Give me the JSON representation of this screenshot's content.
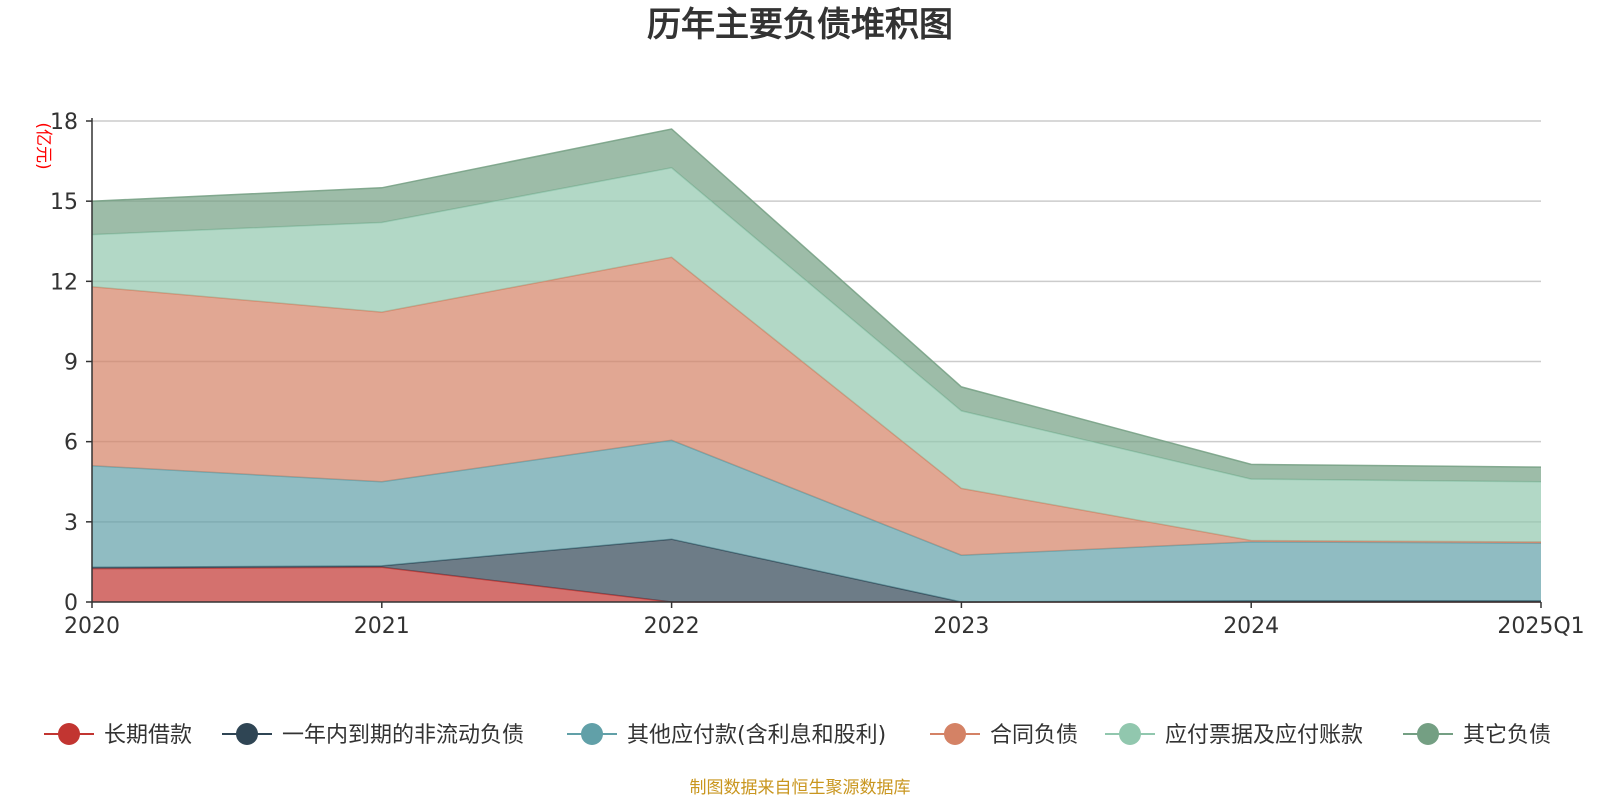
{
  "chart_data": {
    "type": "area",
    "title": "历年主要负债堆积图",
    "y_unit_label": "(亿元)",
    "categories": [
      "2020",
      "2021",
      "2022",
      "2023",
      "2024",
      "2025Q1"
    ],
    "ylim": [
      0,
      18
    ],
    "yticks": [
      "0",
      "3",
      "6",
      "9",
      "12",
      "15",
      "18"
    ],
    "grid": true,
    "stacked": true,
    "series": [
      {
        "name": "长期借款",
        "color": "#c23531",
        "values": [
          1.25,
          1.3,
          0.0,
          0.0,
          0.0,
          0.0
        ]
      },
      {
        "name": "一年内到期的非流动负债",
        "color": "#2f4554",
        "values": [
          0.05,
          0.05,
          2.35,
          0.0,
          0.05,
          0.05
        ]
      },
      {
        "name": "其他应付款(含利息和股利)",
        "color": "#61a0a8",
        "values": [
          3.8,
          3.15,
          3.7,
          1.75,
          2.2,
          2.15
        ]
      },
      {
        "name": "合同负债",
        "color": "#d48265",
        "values": [
          6.7,
          6.35,
          6.85,
          2.5,
          0.05,
          0.05
        ]
      },
      {
        "name": "应付票据及应付账款",
        "color": "#91c7ae",
        "values": [
          1.95,
          3.35,
          3.35,
          2.9,
          2.3,
          2.25
        ]
      },
      {
        "name": "其它负债",
        "color": "#749f83",
        "values": [
          1.25,
          1.3,
          1.45,
          0.9,
          0.55,
          0.55
        ]
      }
    ],
    "legend_position": "bottom",
    "source_note": "制图数据来自恒生聚源数据库"
  }
}
